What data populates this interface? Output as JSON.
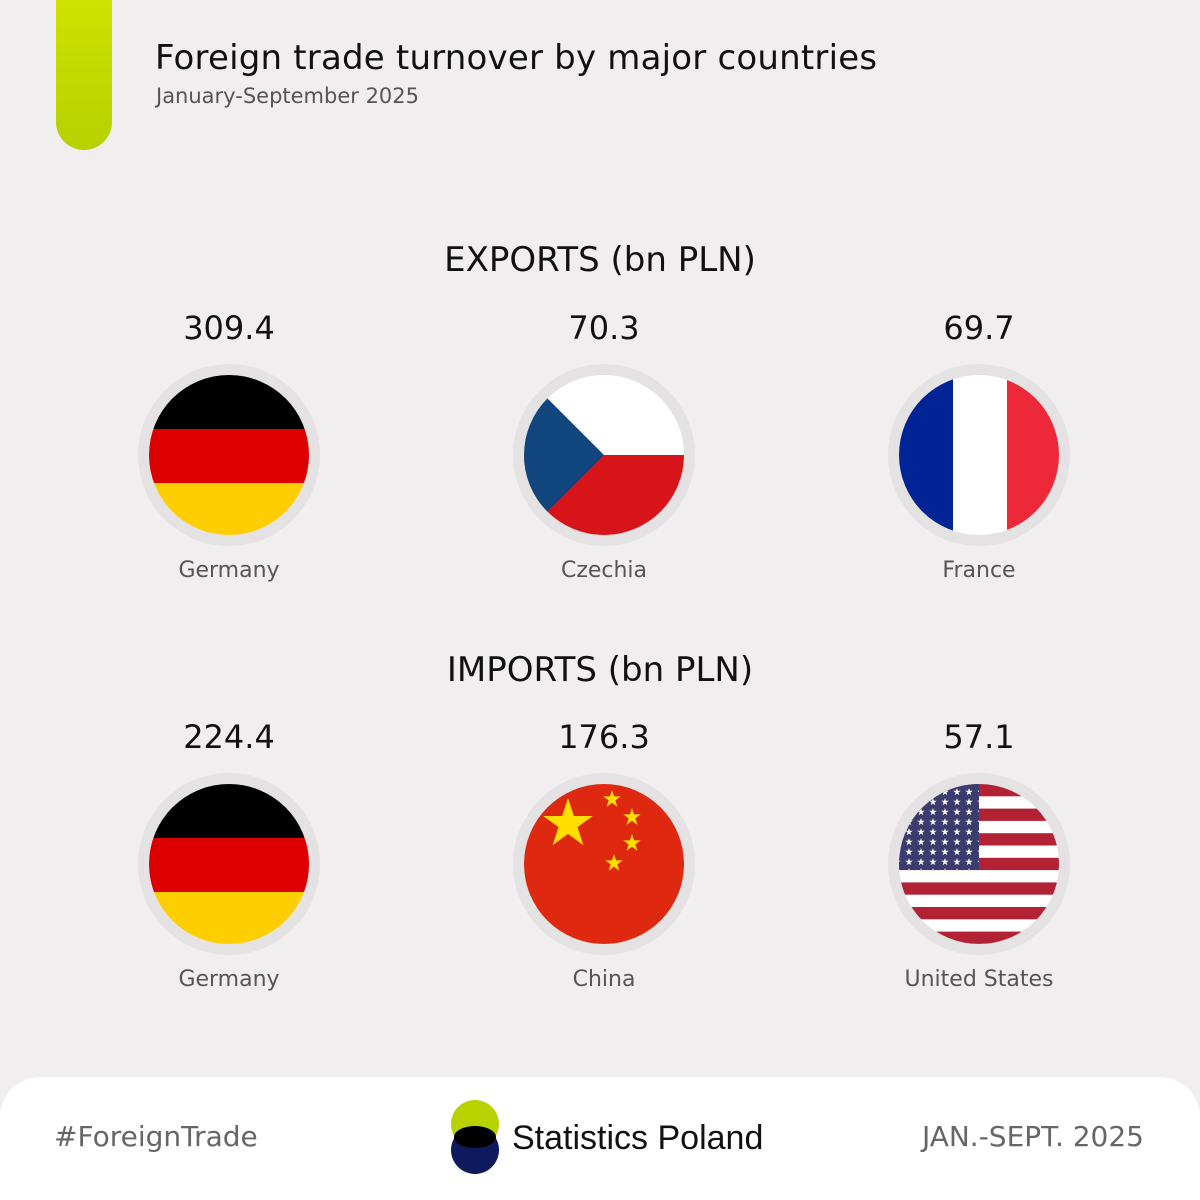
{
  "header": {
    "title": "Foreign trade turnover by major countries",
    "subtitle": "January-September 2025"
  },
  "exports": {
    "heading": "EXPORTS (bn PLN)",
    "countries": [
      {
        "name": "Germany",
        "value": "309.4",
        "flag": "germany-flag-icon"
      },
      {
        "name": "Czechia",
        "value": "70.3",
        "flag": "czechia-flag-icon"
      },
      {
        "name": "France",
        "value": "69.7",
        "flag": "france-flag-icon"
      }
    ]
  },
  "imports": {
    "heading": "IMPORTS (bn PLN)",
    "countries": [
      {
        "name": "Germany",
        "value": "224.4",
        "flag": "germany-flag-icon"
      },
      {
        "name": "China",
        "value": "176.3",
        "flag": "china-flag-icon"
      },
      {
        "name": "United States",
        "value": "57.1",
        "flag": "usa-flag-icon"
      }
    ]
  },
  "footer": {
    "hashtag": "#ForeignTrade",
    "logo_text": "Statistics Poland",
    "period": "JAN.-SEPT. 2025"
  },
  "colors": {
    "accent": "#c8dc00",
    "logo_green": "#b8d200",
    "logo_navy": "#0e1a5c"
  }
}
